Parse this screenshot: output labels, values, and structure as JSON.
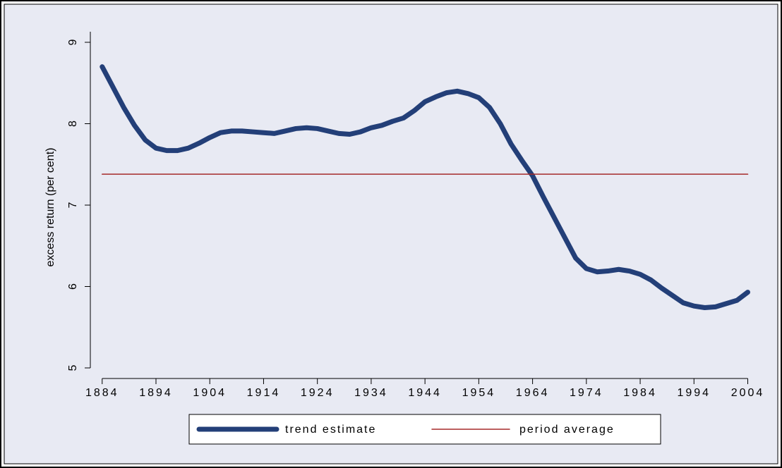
{
  "chart_data": {
    "type": "line",
    "ylabel": "excess return (per cent)",
    "xlim": [
      1881.8,
      2008
    ],
    "ylim": [
      4.87,
      9.13
    ],
    "xticks": [
      1884,
      1894,
      1904,
      1914,
      1924,
      1934,
      1944,
      1954,
      1964,
      1974,
      1984,
      1994,
      2004
    ],
    "yticks": [
      5,
      6,
      7,
      8,
      9
    ],
    "series": [
      {
        "name": "trend estimate",
        "color": "#233f78",
        "width": 7,
        "x": [
          1884,
          1886,
          1888,
          1890,
          1892,
          1894,
          1896,
          1898,
          1900,
          1902,
          1904,
          1906,
          1908,
          1910,
          1912,
          1914,
          1916,
          1918,
          1920,
          1922,
          1924,
          1926,
          1928,
          1930,
          1932,
          1934,
          1936,
          1938,
          1940,
          1942,
          1944,
          1946,
          1948,
          1950,
          1952,
          1954,
          1956,
          1958,
          1960,
          1962,
          1964,
          1966,
          1968,
          1970,
          1972,
          1974,
          1976,
          1978,
          1980,
          1982,
          1984,
          1986,
          1988,
          1990,
          1992,
          1994,
          1996,
          1998,
          2000,
          2002,
          2004
        ],
        "values": [
          8.7,
          8.45,
          8.2,
          7.98,
          7.8,
          7.7,
          7.67,
          7.67,
          7.7,
          7.76,
          7.83,
          7.89,
          7.91,
          7.91,
          7.9,
          7.89,
          7.88,
          7.91,
          7.94,
          7.95,
          7.94,
          7.91,
          7.88,
          7.87,
          7.9,
          7.95,
          7.98,
          8.03,
          8.07,
          8.16,
          8.27,
          8.33,
          8.38,
          8.4,
          8.37,
          8.32,
          8.2,
          8.0,
          7.75,
          7.55,
          7.36,
          7.1,
          6.85,
          6.6,
          6.35,
          6.22,
          6.18,
          6.19,
          6.21,
          6.19,
          6.15,
          6.08,
          5.98,
          5.89,
          5.8,
          5.76,
          5.74,
          5.75,
          5.79,
          5.83,
          5.93
        ]
      },
      {
        "name": "period average",
        "color": "#a52a2a",
        "width": 1.5,
        "x": [
          1884,
          2004
        ],
        "values": [
          7.38,
          7.38
        ]
      }
    ]
  }
}
